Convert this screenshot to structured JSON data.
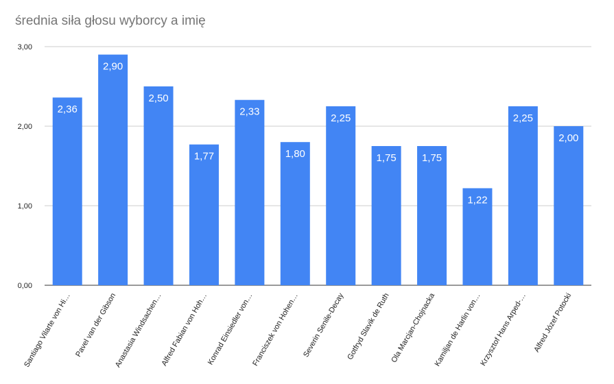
{
  "chart_data": {
    "type": "bar",
    "title": "średnia siła głosu wyborcy a imię",
    "xlabel": "",
    "ylabel": "",
    "ylim": [
      0,
      3
    ],
    "yticks": [
      0,
      1,
      2,
      3
    ],
    "ytick_labels": [
      "0,00",
      "1,00",
      "2,00",
      "3,00"
    ],
    "grid": true,
    "bar_color": "#4285f4",
    "categories": [
      "Santiago Vilarte von Hi…",
      "Pavel van der Gibson",
      "Anastasia Windsachen…",
      "Alfred Fabian von Hoh…",
      "Konrad Einsiedler von…",
      "Franciszek von Hohen…",
      "Severin Senile-Decay",
      "Gotfryd Slavik de Ruth",
      "Ola Marcjan-Chojnacka",
      "Kamiljan de Harlin von…",
      "Krzysztof Hans Arped-…",
      "Alfred Józef Potocki"
    ],
    "values": [
      2.36,
      2.9,
      2.5,
      1.77,
      2.33,
      1.8,
      2.25,
      1.75,
      1.75,
      1.22,
      2.25,
      2.0
    ],
    "value_labels": [
      "2,36",
      "2,90",
      "2,50",
      "1,77",
      "2,33",
      "1,80",
      "2,25",
      "1,75",
      "1,75",
      "1,22",
      "2,25",
      "2,00"
    ]
  }
}
